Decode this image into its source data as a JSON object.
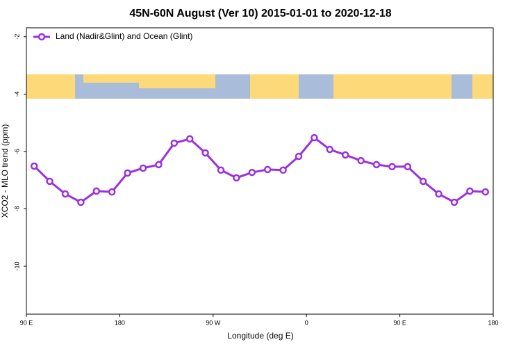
{
  "chart_data": {
    "type": "line",
    "title": "45N-60N August (Ver 10)   2015-01-01 to 2020-12-18",
    "x_label": "Longitude (deg E)",
    "y_label": "XCO2 - MLO trend (ppm)",
    "x": [
      97.5,
      112.5,
      127.5,
      142.5,
      157.5,
      172.5,
      187.5,
      202.5,
      217.5,
      232.5,
      247.5,
      262.5,
      277.5,
      292.5,
      307.5,
      322.5,
      337.5,
      352.5,
      367.5,
      382.5,
      397.5,
      412.5,
      427.5,
      442.5,
      457.5,
      472.5,
      487.5,
      502.5,
      517.5,
      532.5
    ],
    "series": [
      {
        "name": "Land (Nadir&Glint) and Ocean (Glint)",
        "color": "#9b30e0",
        "values": [
          -6.51,
          -7.04,
          -7.48,
          -7.77,
          -7.38,
          -7.41,
          -6.75,
          -6.58,
          -6.46,
          -5.71,
          -5.56,
          -6.05,
          -6.65,
          -6.92,
          -6.73,
          -6.63,
          -6.65,
          -6.17,
          -5.52,
          -5.93,
          -6.12,
          -6.32,
          -6.46,
          -6.53,
          -6.53,
          -7.04,
          -7.48,
          -7.77,
          -7.38,
          -7.41
        ]
      }
    ],
    "xlim": [
      90,
      540
    ],
    "xticks": [
      {
        "value": 90,
        "label": "90 E"
      },
      {
        "value": 180,
        "label": "180"
      },
      {
        "value": 270,
        "label": "90 W"
      },
      {
        "value": 360,
        "label": "0"
      },
      {
        "value": 450,
        "label": "90 E"
      },
      {
        "value": 540,
        "label": "180"
      }
    ],
    "ylim": [
      -11.67,
      -1.69
    ],
    "yticks": [
      -2,
      -4,
      -6,
      -8,
      -10
    ],
    "legend": "top-left"
  }
}
